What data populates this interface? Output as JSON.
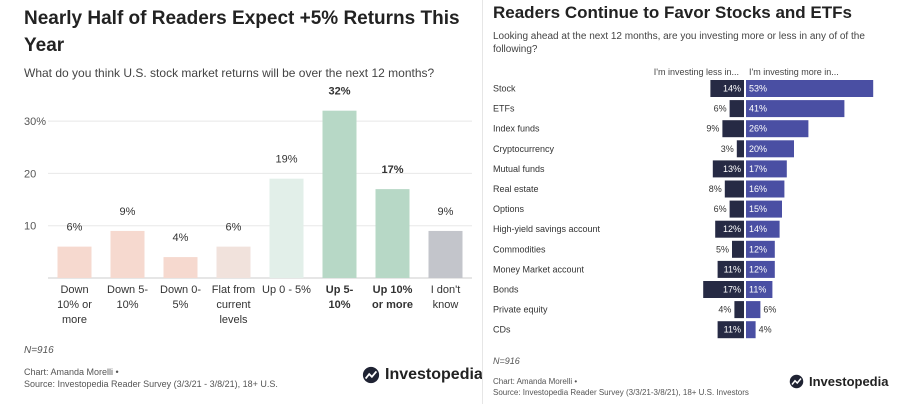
{
  "left": {
    "title": "Nearly Half of  Readers Expect +5% Returns This Year",
    "subtitle": "What do you think U.S. stock market returns will be over the next 12 months?",
    "note": "N=916",
    "credit": "Chart: Amanda Morelli •",
    "source": "Source: Investopedia Reader Survey (3/3/21 - 3/8/21), 18+ U.S.",
    "logo": "Investopedia"
  },
  "right": {
    "title": "Readers Continue to Favor Stocks and ETFs",
    "subtitle": "Looking ahead at the next 12 months, are you investing more or less in any of of the following?",
    "note": "N=916",
    "credit": "Chart: Amanda Morelli •",
    "source": "Source: Investopedia Reader Survey (3/3/21-3/8/21), 18+ U.S. Investors",
    "logo": "Investopedia"
  },
  "chart_data": [
    {
      "type": "bar",
      "title": "Nearly Half of  Readers Expect +5% Returns This Year",
      "subtitle": "What do you think U.S. stock market returns will be over the next 12 months?",
      "categories": [
        "Down 10% or more",
        "Down 5-10%",
        "Down 0-5%",
        "Flat from current levels",
        "Up 0 - 5%",
        "Up 5-10%",
        "Up 10% or more",
        "I don't know"
      ],
      "category_lines": [
        [
          "Down",
          "10% or",
          "more"
        ],
        [
          "Down 5-",
          "10%"
        ],
        [
          "Down 0-",
          "5%"
        ],
        [
          "Flat from",
          "current",
          "levels"
        ],
        [
          "Up 0 - 5%"
        ],
        [
          "Up 5-",
          "10%"
        ],
        [
          "Up 10%",
          "or more"
        ],
        [
          "I don't",
          "know"
        ]
      ],
      "values": [
        6,
        9,
        4,
        6,
        19,
        32,
        17,
        9
      ],
      "value_labels": [
        "6%",
        "9%",
        "4%",
        "6%",
        "19%",
        "32%",
        "17%",
        "9%"
      ],
      "bold": [
        false,
        false,
        false,
        false,
        false,
        true,
        true,
        false
      ],
      "colors": [
        "#f6d9cf",
        "#f6d9cf",
        "#f6d9cf",
        "#f1e2dc",
        "#e2efe9",
        "#b7d8c6",
        "#b7d8c6",
        "#c3c5cb"
      ],
      "yticks": [
        10,
        20,
        30
      ],
      "ytick_labels": [
        "10",
        "20",
        "30%"
      ],
      "ylim": [
        0,
        35
      ],
      "grid": true
    },
    {
      "type": "bar",
      "title": "Readers Continue to Favor Stocks and ETFs",
      "subtitle": "Looking ahead at the next 12 months, are you investing more or less in any of of the following?",
      "orientation": "diverging-horizontal",
      "categories": [
        "Stock",
        "ETFs",
        "Index funds",
        "Cryptocurrency",
        "Mutual funds",
        "Real estate",
        "Options",
        "High-yield savings account",
        "Commodities",
        "Money Market account",
        "Bonds",
        "Private equity",
        "CDs"
      ],
      "series": [
        {
          "name": "I'm investing less in...",
          "values": [
            14,
            6,
            9,
            3,
            13,
            8,
            6,
            12,
            5,
            11,
            17,
            4,
            11
          ],
          "color": "#262a44"
        },
        {
          "name": "I'm investing more in...",
          "values": [
            53,
            41,
            26,
            20,
            17,
            16,
            15,
            14,
            12,
            12,
            11,
            6,
            4
          ],
          "color": "#4a4fa3"
        }
      ],
      "value_suffix": "%"
    }
  ]
}
